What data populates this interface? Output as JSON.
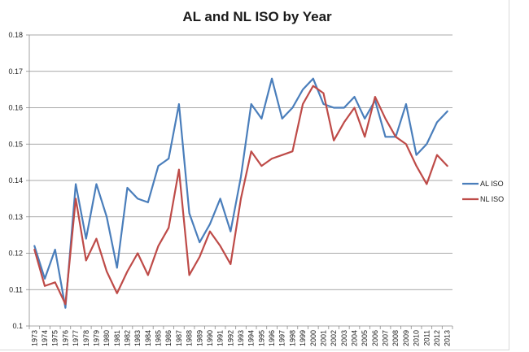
{
  "chart_data": {
    "type": "line",
    "title": "AL and NL ISO by Year",
    "xlabel": "",
    "ylabel": "",
    "categories": [
      "1973",
      "1974",
      "1975",
      "1976",
      "1977",
      "1978",
      "1979",
      "1980",
      "1981",
      "1982",
      "1983",
      "1984",
      "1985",
      "1986",
      "1987",
      "1988",
      "1989",
      "1990",
      "1991",
      "1992",
      "1993",
      "1994",
      "1995",
      "1996",
      "1997",
      "1998",
      "1999",
      "2000",
      "2001",
      "2002",
      "2003",
      "2004",
      "2005",
      "2006",
      "2007",
      "2008",
      "2009",
      "2010",
      "2011",
      "2012",
      "2013"
    ],
    "ylim": [
      0.1,
      0.18
    ],
    "yticks": [
      "0.1",
      "0.11",
      "0.12",
      "0.13",
      "0.14",
      "0.15",
      "0.16",
      "0.17",
      "0.18"
    ],
    "grid": true,
    "legend_position": "right",
    "series": [
      {
        "name": "AL ISO",
        "color": "#4a7ebb",
        "values": [
          0.122,
          0.113,
          0.121,
          0.105,
          0.139,
          0.124,
          0.139,
          0.13,
          0.116,
          0.138,
          0.135,
          0.134,
          0.144,
          0.146,
          0.161,
          0.131,
          0.123,
          0.128,
          0.135,
          0.126,
          0.141,
          0.161,
          0.157,
          0.168,
          0.157,
          0.16,
          0.165,
          0.168,
          0.161,
          0.16,
          0.16,
          0.163,
          0.157,
          0.162,
          0.152,
          0.152,
          0.161,
          0.147,
          0.15,
          0.156,
          0.159
        ]
      },
      {
        "name": "NL ISO",
        "color": "#be4b48",
        "values": [
          0.121,
          0.111,
          0.112,
          0.106,
          0.135,
          0.118,
          0.124,
          0.115,
          0.109,
          0.115,
          0.12,
          0.114,
          0.122,
          0.127,
          0.143,
          0.114,
          0.119,
          0.126,
          0.122,
          0.117,
          0.135,
          0.148,
          0.144,
          0.146,
          0.147,
          0.148,
          0.161,
          0.166,
          0.164,
          0.151,
          0.156,
          0.16,
          0.152,
          0.163,
          0.157,
          0.152,
          0.15,
          0.144,
          0.139,
          0.147,
          0.144
        ]
      }
    ]
  }
}
